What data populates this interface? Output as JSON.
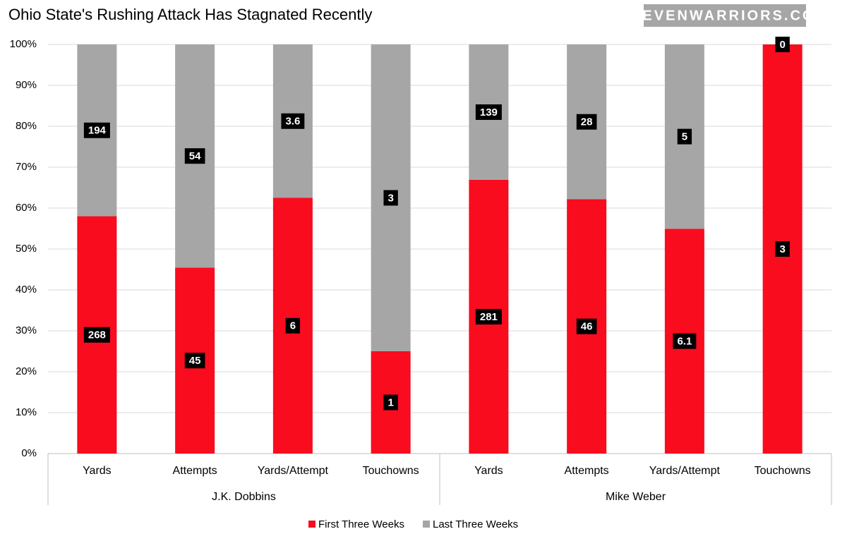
{
  "chart_data": {
    "type": "bar",
    "stacking": "percent",
    "title": "Ohio State's Rushing Attack Has Stagnated Recently",
    "watermark": "ELEVENWARRIORS.COM",
    "groups": [
      {
        "label": "J.K. Dobbins",
        "categories": [
          "Yards",
          "Attempts",
          "Yards/Attempt",
          "Touchowns"
        ]
      },
      {
        "label": "Mike Weber",
        "categories": [
          "Yards",
          "Attempts",
          "Yards/Attempt",
          "Touchowns"
        ]
      }
    ],
    "series": [
      {
        "name": "First Three Weeks",
        "color": "#f80c1e",
        "values": [
          268,
          45,
          6,
          1,
          281,
          46,
          6.1,
          3
        ]
      },
      {
        "name": "Last Three Weeks",
        "color": "#a6a6a6",
        "values": [
          194,
          54,
          3.6,
          3,
          139,
          28,
          5,
          0
        ]
      }
    ],
    "ylim": [
      0,
      100
    ],
    "yticks": [
      {
        "value": 0,
        "label": "0%"
      },
      {
        "value": 10,
        "label": "10%"
      },
      {
        "value": 20,
        "label": "20%"
      },
      {
        "value": 30,
        "label": "30%"
      },
      {
        "value": 40,
        "label": "40%"
      },
      {
        "value": 50,
        "label": "50%"
      },
      {
        "value": 60,
        "label": "60%"
      },
      {
        "value": 70,
        "label": "70%"
      },
      {
        "value": 80,
        "label": "80%"
      },
      {
        "value": 90,
        "label": "90%"
      },
      {
        "value": 100,
        "label": "100%"
      }
    ],
    "grid": true,
    "legend": "bottom"
  }
}
